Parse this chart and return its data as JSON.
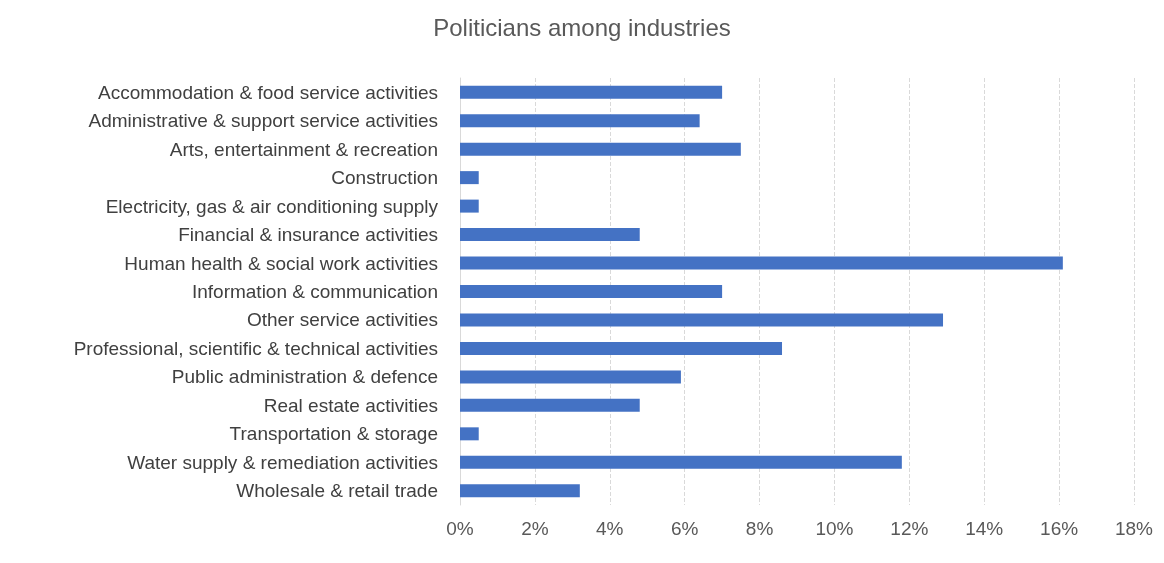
{
  "chart_data": {
    "type": "bar",
    "orientation": "horizontal",
    "title": "Politicians among industries",
    "categories": [
      "Accommodation & food service activities",
      "Administrative & support service activities",
      "Arts, entertainment & recreation",
      "Construction",
      "Electricity, gas & air conditioning supply",
      "Financial & insurance activities",
      "Human health & social work activities",
      "Information & communication",
      "Other service activities",
      "Professional, scientific & technical activities",
      "Public administration & defence",
      "Real estate activities",
      "Transportation & storage",
      "Water supply & remediation activities",
      "Wholesale & retail trade"
    ],
    "values": [
      7.0,
      6.4,
      7.5,
      0.5,
      0.5,
      4.8,
      16.1,
      7.0,
      12.9,
      8.6,
      5.9,
      4.8,
      0.5,
      11.8,
      3.2
    ],
    "color": "#4472c4",
    "xlim": [
      0,
      18
    ],
    "xticks": [
      {
        "value": 0,
        "label": "0%"
      },
      {
        "value": 2,
        "label": "2%"
      },
      {
        "value": 4,
        "label": "4%"
      },
      {
        "value": 6,
        "label": "6%"
      },
      {
        "value": 8,
        "label": "8%"
      },
      {
        "value": 10,
        "label": "10%"
      },
      {
        "value": 12,
        "label": "12%"
      },
      {
        "value": 14,
        "label": "14%"
      },
      {
        "value": 16,
        "label": "16%"
      },
      {
        "value": 18,
        "label": "18%"
      }
    ],
    "grid": "x"
  }
}
